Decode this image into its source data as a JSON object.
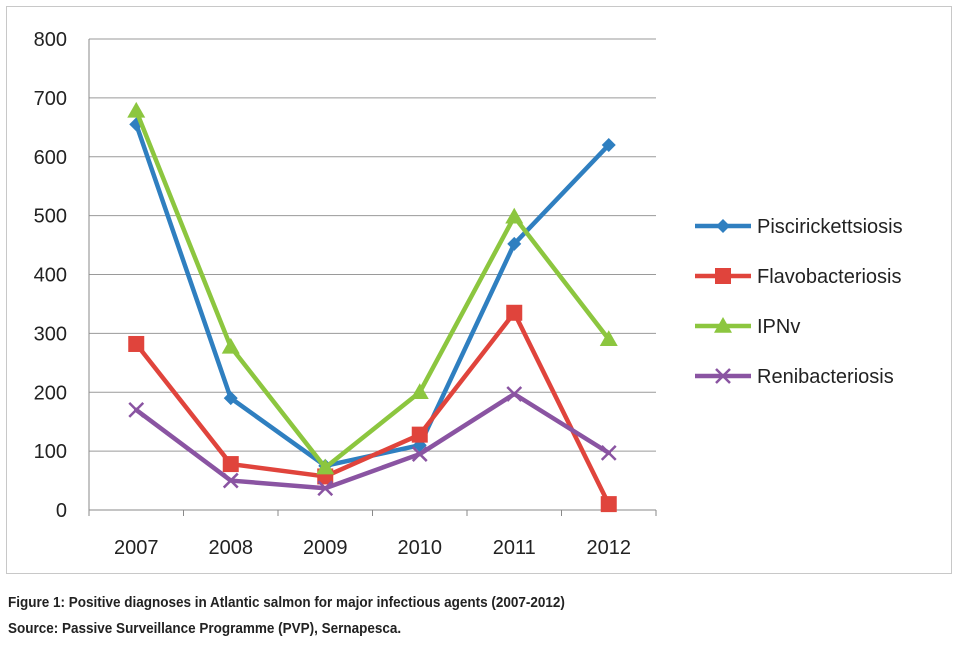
{
  "chart_data": {
    "type": "line",
    "categories": [
      "2007",
      "2008",
      "2009",
      "2010",
      "2011",
      "2012"
    ],
    "ylim": [
      0,
      800
    ],
    "yticks": [
      0,
      100,
      200,
      300,
      400,
      500,
      600,
      700,
      800
    ],
    "grid": true,
    "legend_position": "right",
    "series": [
      {
        "name": "Piscirickettsiosis",
        "values": [
          655,
          190,
          75,
          110,
          452,
          620
        ],
        "color": "#2f7fc0",
        "marker": "diamond"
      },
      {
        "name": "Flavobacteriosis",
        "values": [
          282,
          78,
          57,
          128,
          335,
          10
        ],
        "color": "#e0443c",
        "marker": "square"
      },
      {
        "name": "IPNv",
        "values": [
          678,
          277,
          72,
          200,
          498,
          290
        ],
        "color": "#8cc63f",
        "marker": "triangle"
      },
      {
        "name": "Renibacteriosis",
        "values": [
          170,
          50,
          37,
          95,
          197,
          97
        ],
        "color": "#8a54a2",
        "marker": "x"
      }
    ]
  },
  "caption": {
    "line1": "Figure 1: Positive diagnoses in Atlantic salmon for major infectious agents (2007-2012)",
    "line2": "Source: Passive Surveillance Programme (PVP), Sernapesca."
  }
}
